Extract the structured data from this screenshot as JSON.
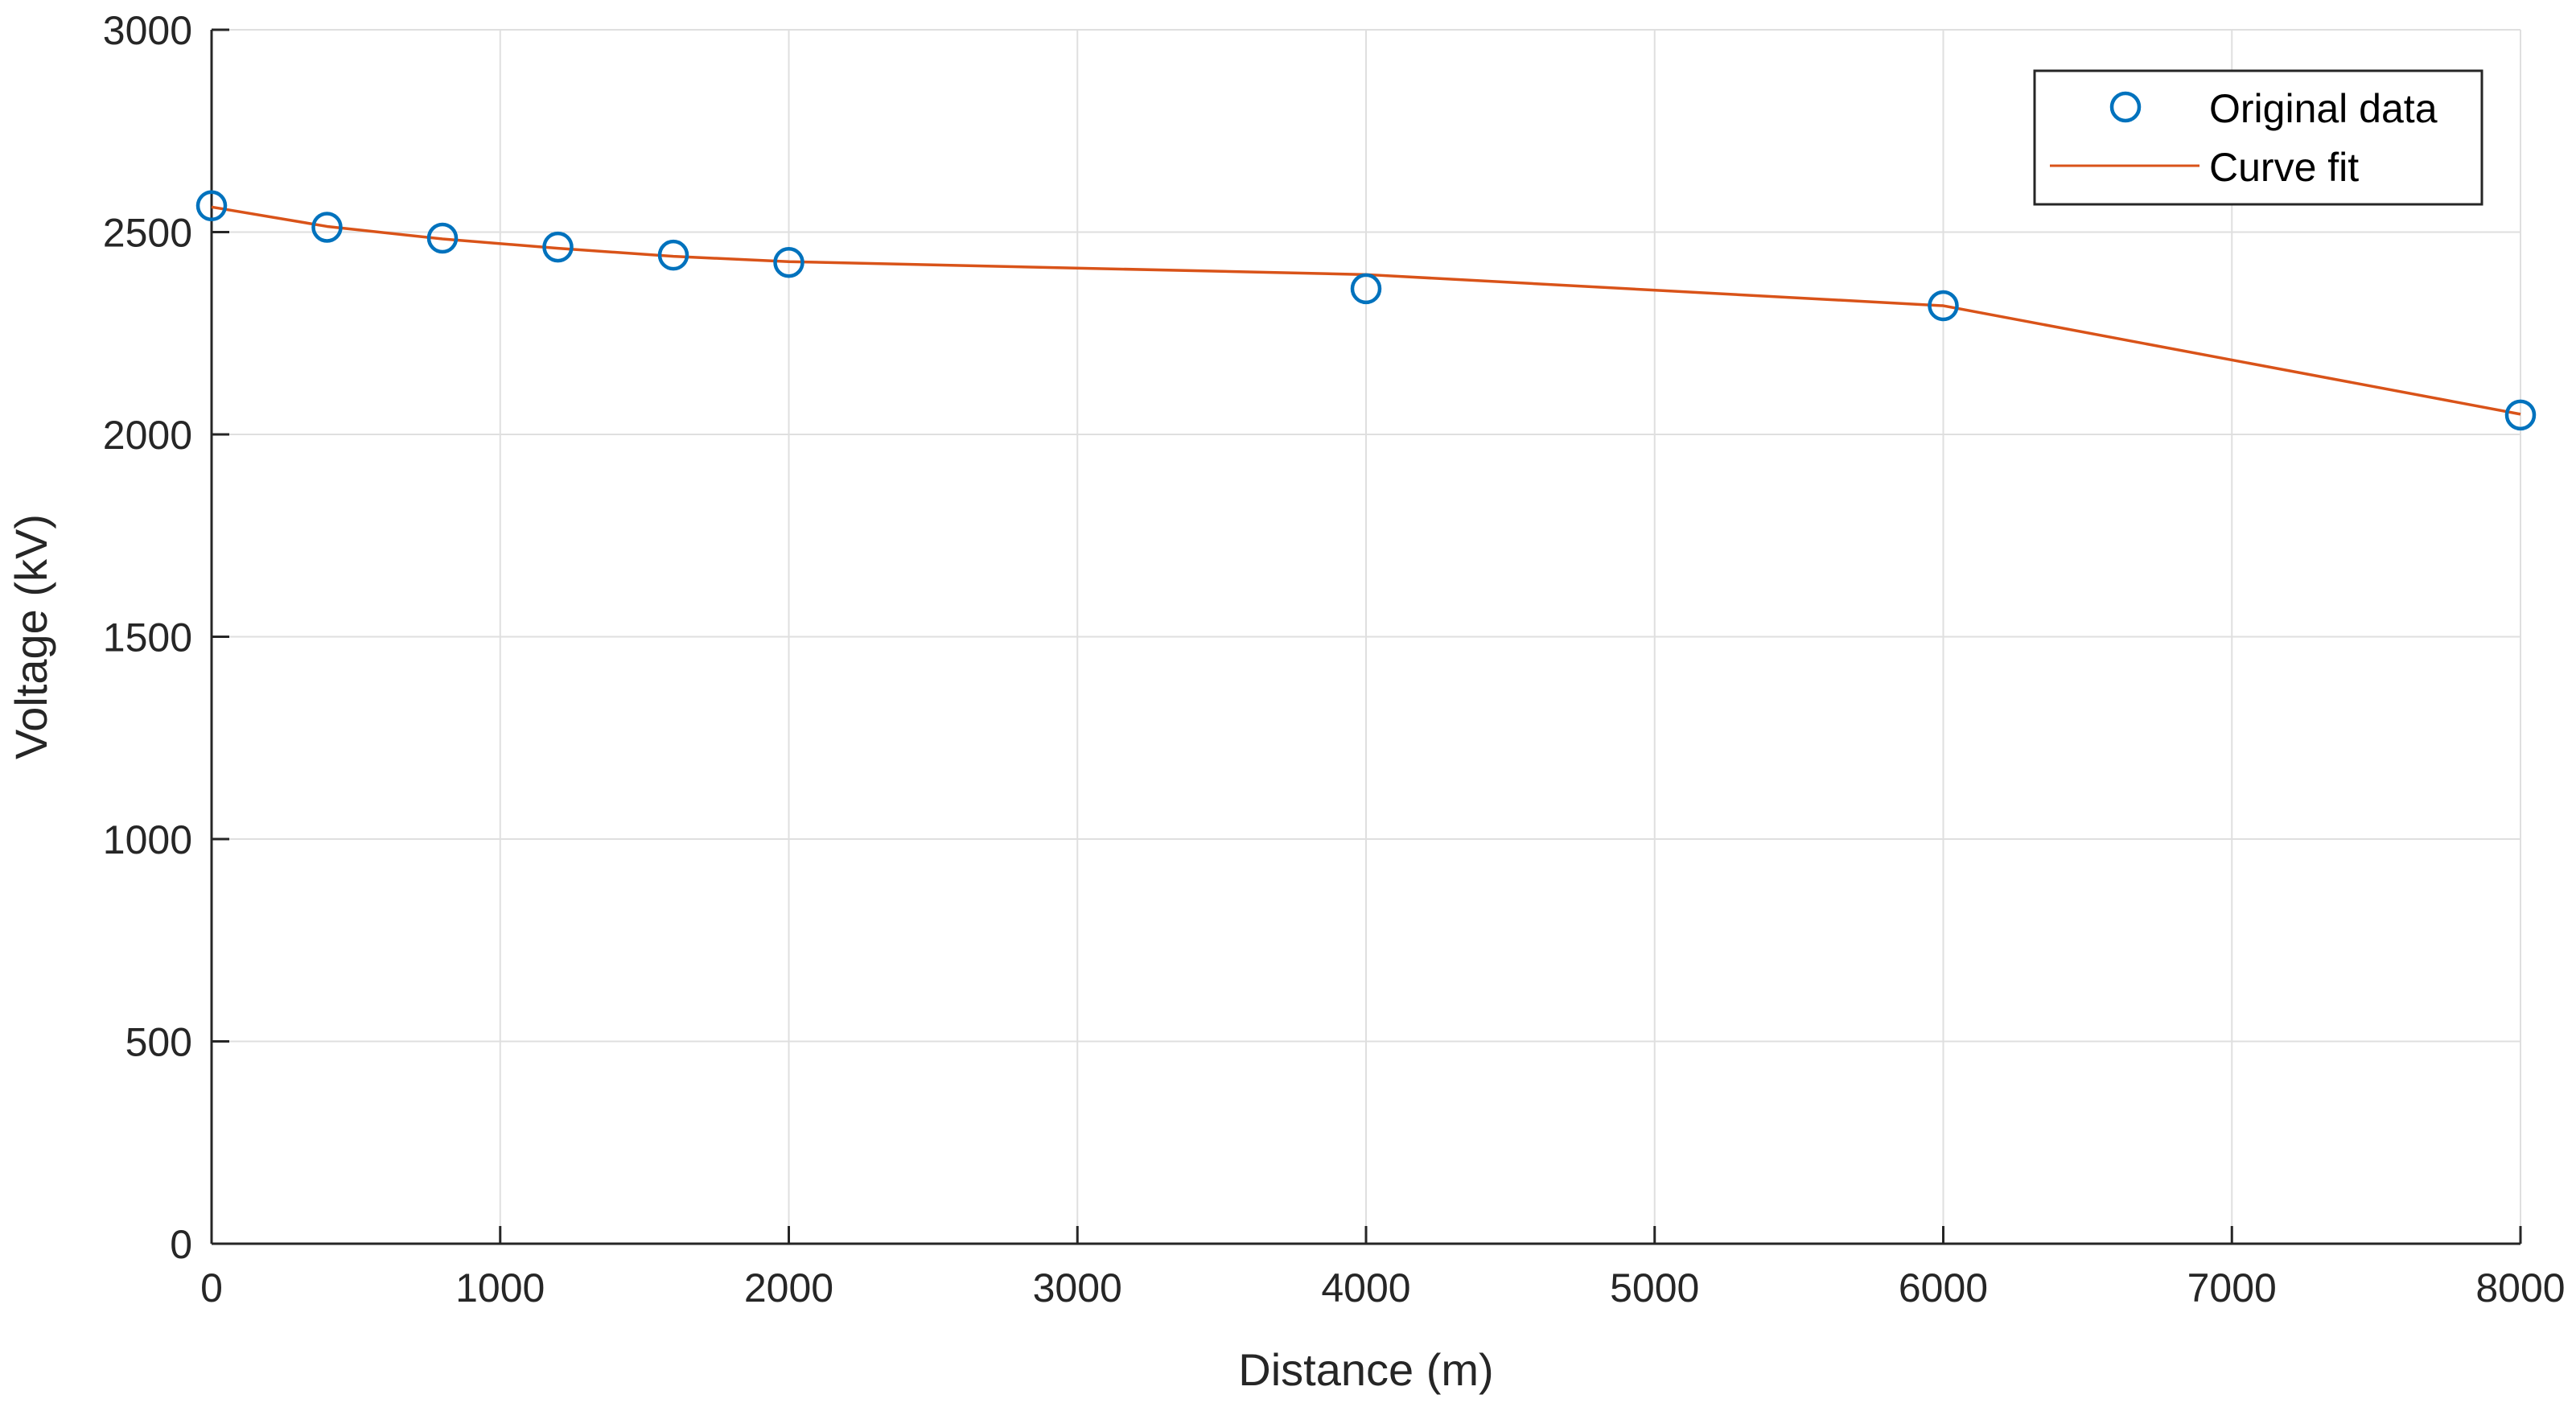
{
  "chart_data": {
    "type": "line",
    "xlabel": "Distance (m)",
    "ylabel": "Voltage (kV)",
    "xlim": [
      0,
      8000
    ],
    "ylim": [
      0,
      3000
    ],
    "xticks": [
      0,
      1000,
      2000,
      3000,
      4000,
      5000,
      6000,
      7000,
      8000
    ],
    "yticks": [
      0,
      500,
      1000,
      1500,
      2000,
      2500,
      3000
    ],
    "grid": true,
    "legend_position": "top-right",
    "series": [
      {
        "name": "Original data",
        "style": "markers",
        "marker": "circle",
        "color": "#0072BD",
        "x": [
          0,
          400,
          800,
          1200,
          1600,
          2000,
          4000,
          6000,
          8000
        ],
        "y": [
          2565,
          2512,
          2485,
          2463,
          2443,
          2425,
          2360,
          2318,
          2048
        ]
      },
      {
        "name": "Curve fit",
        "style": "line",
        "color": "#D95319",
        "x": [
          0,
          400,
          800,
          1200,
          1600,
          2000,
          4000,
          6000,
          8000
        ],
        "y": [
          2562,
          2514,
          2483,
          2460,
          2440,
          2427,
          2395,
          2318,
          2050
        ]
      }
    ]
  }
}
